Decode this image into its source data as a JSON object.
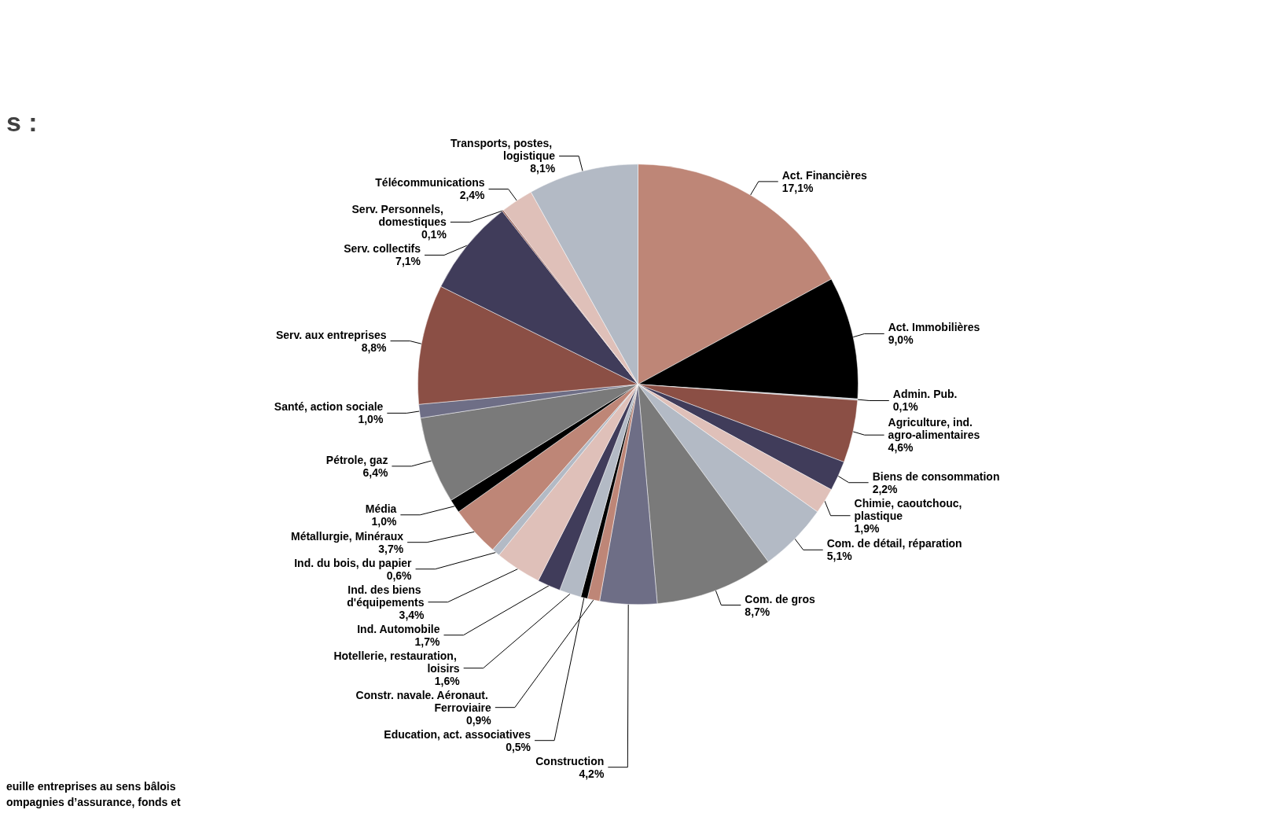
{
  "chart_data": {
    "type": "pie",
    "categories": [
      "Act. Financières",
      "Act. Immobilières",
      "Admin. Pub.",
      "Agriculture, ind. agro-alimentaires",
      "Biens de consommation",
      "Chimie, caoutchouc, plastique",
      "Com. de détail, réparation",
      "Com. de gros",
      "Construction",
      "Constr. navale. Aéronaut. Ferroviaire",
      "Education, act. associatives",
      "Hotellerie, restauration, loisirs",
      "Ind. Automobile",
      "Ind. des biens d'équipements",
      "Ind. du bois, du papier",
      "Métallurgie, Minéraux",
      "Média",
      "Pétrole, gaz",
      "Santé, action sociale",
      "Serv. aux entreprises",
      "Serv. collectifs",
      "Serv. Personnels, domestiques",
      "Télécommunications",
      "Transports, postes, logistique"
    ],
    "values": [
      17.1,
      9.0,
      0.1,
      4.6,
      2.2,
      1.9,
      5.1,
      8.7,
      4.2,
      0.9,
      0.5,
      1.6,
      1.7,
      3.4,
      0.6,
      3.7,
      1.0,
      6.4,
      1.0,
      8.8,
      7.1,
      0.1,
      2.4,
      8.1
    ],
    "value_labels": [
      "17,1%",
      "9,0%",
      "0,1%",
      "4,6%",
      "2,2%",
      "1,9%",
      "5,1%",
      "8,7%",
      "4,2%",
      "0,9%",
      "0,5%",
      "1,6%",
      "1,7%",
      "3,4%",
      "0,6%",
      "3,7%",
      "1,0%",
      "6,4%",
      "1,0%",
      "8,8%",
      "7,1%",
      "0,1%",
      "2,4%",
      "8,1%"
    ],
    "colors": [
      "#be8677",
      "#000000",
      "#b3bac5",
      "#8b4f45",
      "#403c5a",
      "#dfc0b9",
      "#b3bac5",
      "#7a7a7a",
      "#6e6e86",
      "#be8677",
      "#000000",
      "#b3bac5",
      "#403c5a",
      "#dfc0b9",
      "#b3bac5",
      "#be8677",
      "#000000",
      "#7a7a7a",
      "#6e6e86",
      "#8b4f45",
      "#403c5a",
      "#8b4f45",
      "#dfc0b9",
      "#b3bac5"
    ],
    "annotations": [
      "s :",
      "euille entreprises au sens bâlois",
      "ompagnies d’assurance, fonds et"
    ],
    "legend": false
  }
}
